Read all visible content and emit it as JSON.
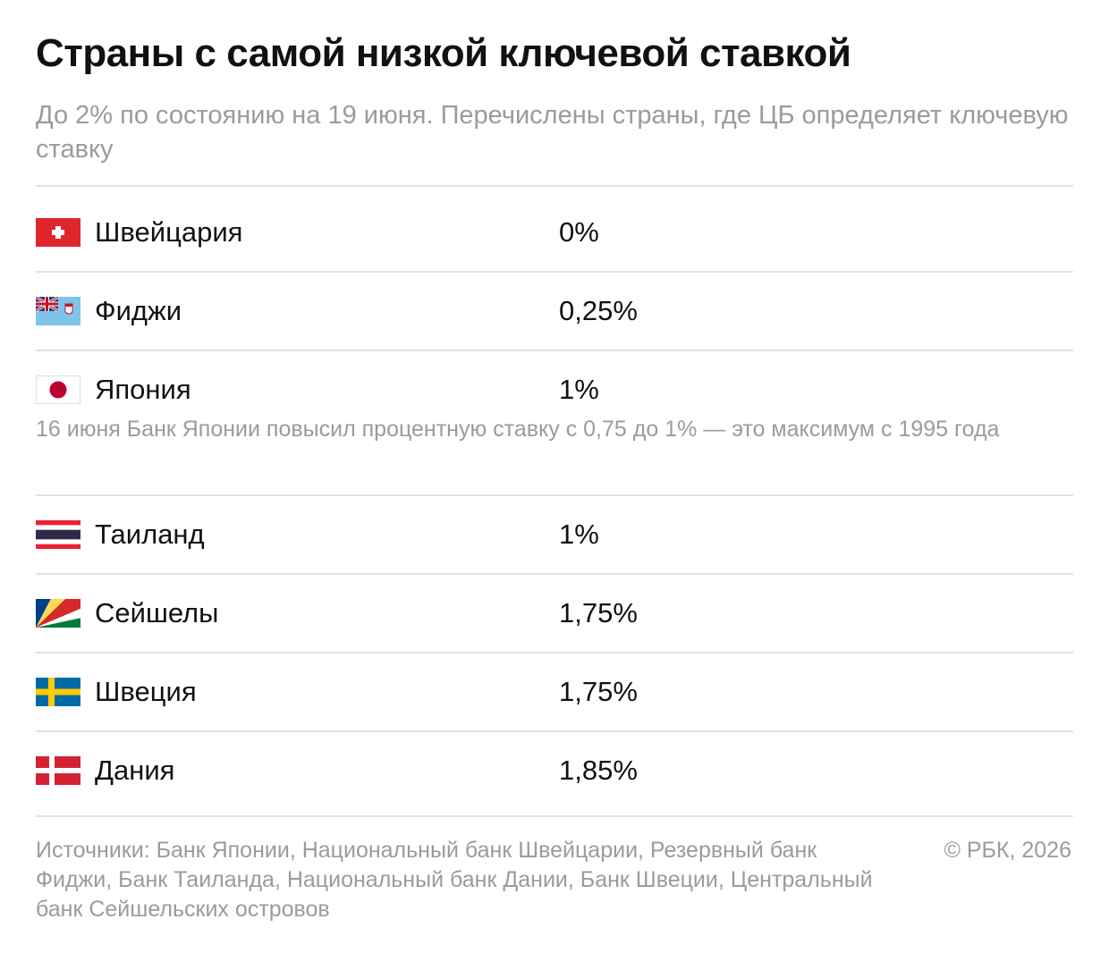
{
  "title": "Страны с самой низкой ключевой ставкой",
  "subtitle": "До 2% по состоянию на 19 июня. Перечислены страны, где ЦБ определяет ключевую ставку",
  "chart_data": {
    "type": "table",
    "columns": [
      "country",
      "rate"
    ],
    "rows": [
      {
        "country": "Швейцария",
        "rate": "0%",
        "value": 0,
        "flag": "switzerland-flag-icon"
      },
      {
        "country": "Фиджи",
        "rate": "0,25%",
        "value": 0.25,
        "flag": "fiji-flag-icon"
      },
      {
        "country": "Япония",
        "rate": "1%",
        "value": 1,
        "flag": "japan-flag-icon"
      },
      {
        "country": "Таиланд",
        "rate": "1%",
        "value": 1,
        "flag": "thailand-flag-icon"
      },
      {
        "country": "Сейшелы",
        "rate": "1,75%",
        "value": 1.75,
        "flag": "seychelles-flag-icon"
      },
      {
        "country": "Швеция",
        "rate": "1,75%",
        "value": 1.75,
        "flag": "sweden-flag-icon"
      },
      {
        "country": "Дания",
        "rate": "1,85%",
        "value": 1.85,
        "flag": "denmark-flag-icon"
      }
    ],
    "annotations": [
      {
        "after_country": "Япония",
        "text": "16 июня Банк Японии повысил процентную ставку с 0,75 до 1% — это максимум с 1995 года"
      }
    ]
  },
  "footer": {
    "sources": "Источники: Банк Японии, Национальный банк Швейцарии, Резервный банк Фиджи, Банк Таиланда, Национальный банк Дании, Банк Швеции, Центральный банк Сейшельских островов",
    "copyright": "© РБК, 2026"
  },
  "colors": {
    "text": "#111111",
    "muted": "#9b9b9b",
    "rule": "#e2e2e2"
  }
}
